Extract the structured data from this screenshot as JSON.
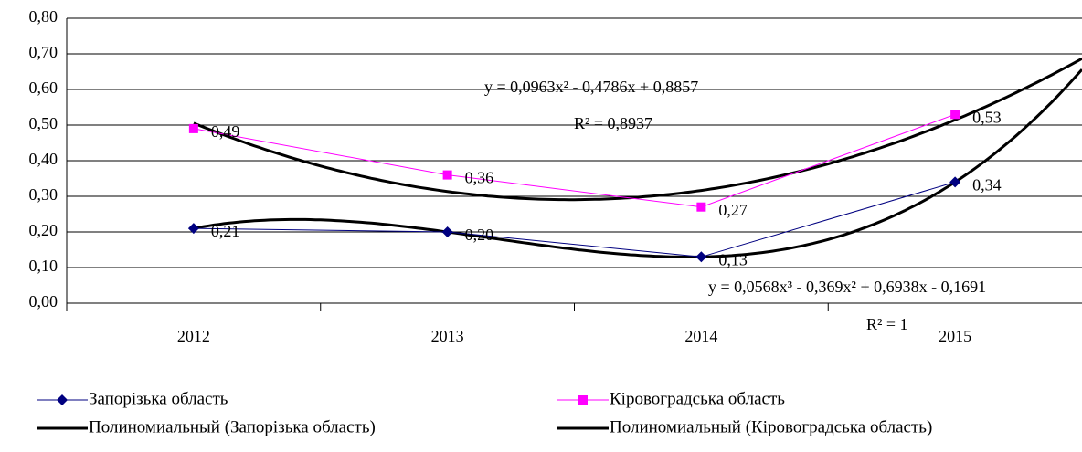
{
  "chart_data": {
    "type": "line",
    "categories": [
      "2012",
      "2013",
      "2014",
      "2015"
    ],
    "series": [
      {
        "name": "Запорізька область",
        "color": "#000080",
        "marker": "diamond",
        "values": [
          0.21,
          0.2,
          0.13,
          0.34
        ],
        "value_labels": [
          "0,21",
          "0,20",
          "0,13",
          "0,34"
        ]
      },
      {
        "name": "Кіровоградська область",
        "color": "#ff00ff",
        "marker": "square",
        "values": [
          0.49,
          0.36,
          0.27,
          0.53
        ],
        "value_labels": [
          "0,49",
          "0,36",
          "0,27",
          "0,53"
        ]
      },
      {
        "name": "Полиномиальный (Запорізька область)",
        "color": "#000000",
        "trend_of": 0,
        "degree": 3,
        "forward": 0.5
      },
      {
        "name": "Полиномиальный (Кіровоградська область)",
        "color": "#000000",
        "trend_of": 1,
        "degree": 2,
        "forward": 0.5
      }
    ],
    "annotations": [
      {
        "text": "y = 0,0963x² - 0,4786x + 0,8857"
      },
      {
        "text": "R² = 0,8937"
      },
      {
        "text": "y = 0,0568x³ - 0,369x² + 0,6938x - 0,1691"
      },
      {
        "text": "R² = 1"
      }
    ],
    "ylim": [
      0,
      0.8
    ],
    "yticks": [
      {
        "value": 0,
        "label": "0,00"
      },
      {
        "value": 0.1,
        "label": "0,10"
      },
      {
        "value": 0.2,
        "label": "0,20"
      },
      {
        "value": 0.3,
        "label": "0,30"
      },
      {
        "value": 0.4,
        "label": "0,40"
      },
      {
        "value": 0.5,
        "label": "0,50"
      },
      {
        "value": 0.6,
        "label": "0,60"
      },
      {
        "value": 0.7,
        "label": "0,70"
      },
      {
        "value": 0.8,
        "label": "0,80"
      }
    ],
    "grid": true
  }
}
